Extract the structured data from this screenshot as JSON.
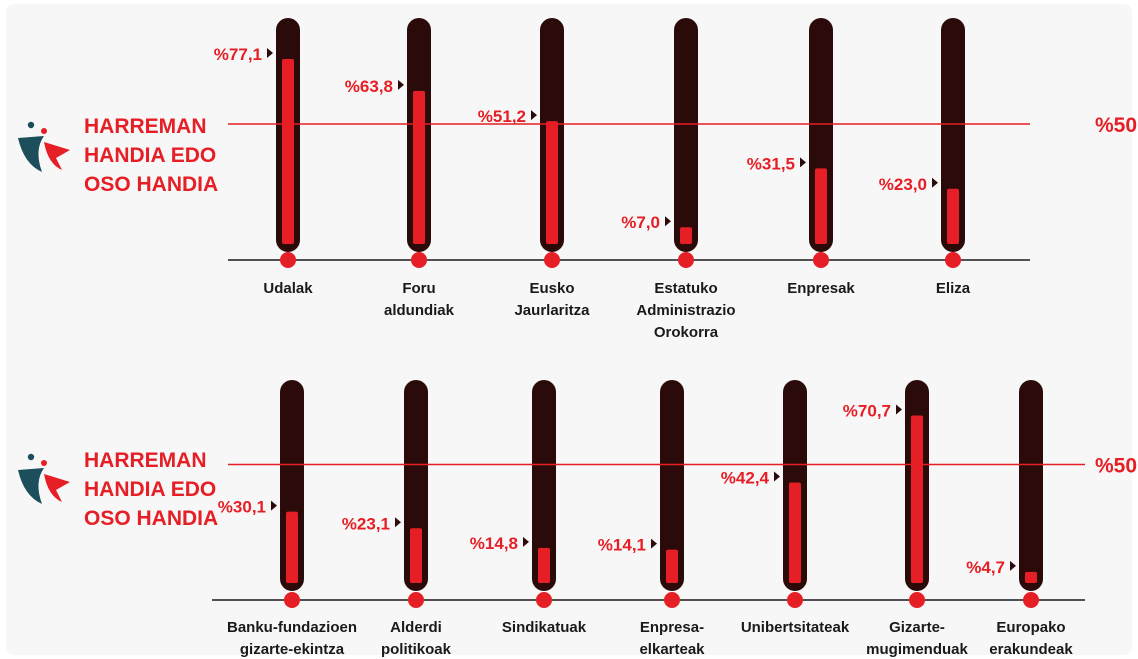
{
  "colors": {
    "accent": "#e61e25",
    "tube": "#2b0a0a",
    "axis": "#1a1a1a",
    "text": "#1a1a1a",
    "logo_dark": "#1d4e5c",
    "logo_red": "#e61e25"
  },
  "logo_icon": "person-figure-icon",
  "chart_data": [
    {
      "type": "bar",
      "side_label": [
        "HARREMAN",
        "HANDIA EDO",
        "OSO HANDIA"
      ],
      "reference_line": {
        "value": 50,
        "label": "%50"
      },
      "ylim": [
        0,
        100
      ],
      "categories": [
        [
          "Udalak"
        ],
        [
          "Foru",
          "aldundiak"
        ],
        [
          "Eusko",
          "Jaurlaritza"
        ],
        [
          "Estatuko",
          "Administrazio",
          "Orokorra"
        ],
        [
          "Enpresak"
        ],
        [
          "Eliza"
        ]
      ],
      "values": [
        77.1,
        63.8,
        51.2,
        7.0,
        31.5,
        23.0
      ],
      "value_labels": [
        "%77,1",
        "%63,8",
        "%51,2",
        "%7,0",
        "%31,5",
        "%23,0"
      ]
    },
    {
      "type": "bar",
      "side_label": [
        "HARREMAN",
        "HANDIA EDO",
        "OSO HANDIA"
      ],
      "reference_line": {
        "value": 50,
        "label": "%50"
      },
      "ylim": [
        0,
        100
      ],
      "categories": [
        [
          "Banku-fundazioen",
          "gizarte-ekintza"
        ],
        [
          "Alderdi",
          "politikoak"
        ],
        [
          "Sindikatuak"
        ],
        [
          "Enpresa-",
          "elkarteak"
        ],
        [
          "Unibertsitateak"
        ],
        [
          "Gizarte-",
          "mugimenduak"
        ],
        [
          "Europako",
          "erakundeak"
        ]
      ],
      "values": [
        30.1,
        23.1,
        14.8,
        14.1,
        42.4,
        70.7,
        4.7
      ],
      "value_labels": [
        "%30,1",
        "%23,1",
        "%14,8",
        "%14,1",
        "%42,4",
        "%70,7",
        "%4,7"
      ]
    }
  ]
}
